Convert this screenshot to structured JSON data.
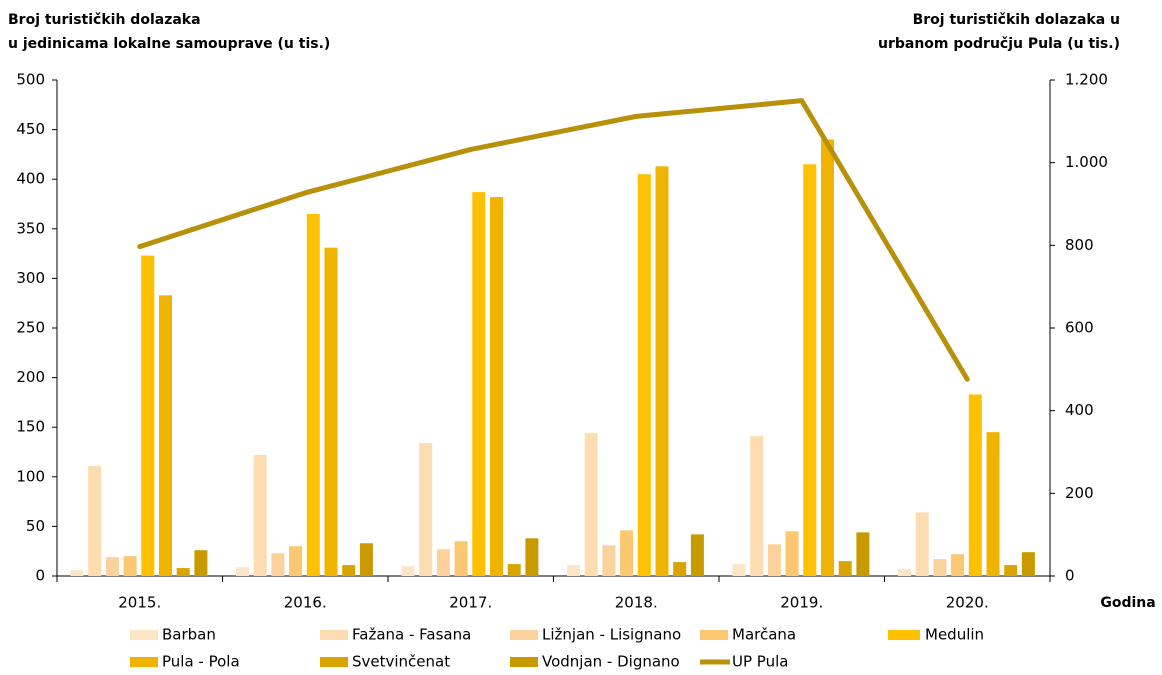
{
  "chart_data": {
    "type": "bar",
    "y_label": [
      "Broj turističkih dolazaka",
      "u jedinicama lokalne samouprave (u tis.)"
    ],
    "y2_label": [
      "Broj turističkih dolazaka u",
      "urbanom području Pula (u tis.)"
    ],
    "x_label": "Godina",
    "categories": [
      "2015.",
      "2016.",
      "2017.",
      "2018.",
      "2019.",
      "2020."
    ],
    "series": [
      {
        "name": "Barban",
        "color": "#fde6c8",
        "values": [
          6,
          9,
          10,
          11,
          12,
          7
        ]
      },
      {
        "name": "Fažana - Fasana",
        "color": "#fddcb2",
        "values": [
          111,
          122,
          134,
          144,
          141,
          64
        ]
      },
      {
        "name": "Ližnjan - Lisignano",
        "color": "#fcd29c",
        "values": [
          19,
          23,
          27,
          31,
          32,
          17
        ]
      },
      {
        "name": "Marčana",
        "color": "#fbc771",
        "values": [
          20,
          30,
          35,
          46,
          45,
          22
        ]
      },
      {
        "name": "Medulin",
        "color": "#ffc000",
        "values": [
          323,
          365,
          387,
          405,
          415,
          183
        ]
      },
      {
        "name": "Pula - Pola",
        "color": "#f0b400",
        "values": [
          283,
          331,
          382,
          413,
          440,
          145
        ]
      },
      {
        "name": "Svetvinčenat",
        "color": "#d9a400",
        "values": [
          8,
          11,
          12,
          14,
          15,
          11
        ]
      },
      {
        "name": "Vodnjan - Dignano",
        "color": "#c99a00",
        "values": [
          26,
          33,
          38,
          42,
          44,
          24
        ]
      },
      {
        "name": "UP Pula",
        "color": "#b8900a",
        "type": "line",
        "axis": "y2",
        "values": [
          797,
          927,
          1032,
          1112,
          1150,
          476
        ]
      }
    ],
    "ylim": [
      0,
      500
    ],
    "yticks": [
      0,
      50,
      100,
      150,
      200,
      250,
      300,
      350,
      400,
      450,
      500
    ],
    "y2lim": [
      0,
      1200
    ],
    "y2ticks": [
      0,
      200,
      400,
      600,
      800,
      {
        "value": 1000,
        "label": "1.000"
      },
      {
        "value": 1200,
        "label": "1.200"
      }
    ],
    "grid": false
  }
}
